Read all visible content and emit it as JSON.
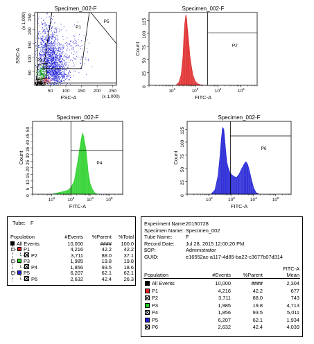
{
  "chart_data": [
    {
      "type": "scatter",
      "title": "Specimen_002-F",
      "xlabel": "FSC-A",
      "ylabel": "SSC-A",
      "x_unit": "(x 1,000)",
      "y_unit": "(x 1,000)",
      "xlim": [
        0,
        262
      ],
      "ylim": [
        0,
        262
      ],
      "x_ticks": [
        "50",
        "100",
        "150",
        "200",
        "250"
      ],
      "y_ticks": [
        "50",
        "100",
        "150",
        "200",
        "250"
      ],
      "gates": [
        "P1",
        "P3",
        "P5"
      ],
      "color": "#1b1bd6"
    },
    {
      "type": "area",
      "title": "Specimen_002-F",
      "xlabel": "FITC-A",
      "ylabel": "Count",
      "x_scale": "log",
      "xlim": [
        10,
        500000
      ],
      "ylim": [
        0,
        140
      ],
      "x_ticks": [
        "10^2",
        "10^3",
        "10^4",
        "10^5"
      ],
      "y_ticks": [
        "0",
        "25",
        "50",
        "75",
        "100",
        "125"
      ],
      "gate": "P2",
      "color": "#e03030",
      "x": [
        150,
        200,
        250,
        300,
        330,
        360,
        400,
        430,
        460,
        500,
        550,
        600,
        700,
        800,
        1000,
        1300,
        1700,
        2500
      ],
      "values": [
        0,
        6,
        20,
        55,
        95,
        120,
        135,
        128,
        112,
        95,
        75,
        55,
        35,
        20,
        8,
        3,
        1,
        0
      ]
    },
    {
      "type": "area",
      "title": "Specimen_002-F",
      "xlabel": "FITC-A",
      "ylabel": "Count",
      "x_scale": "log",
      "xlim": [
        10,
        500000
      ],
      "ylim": [
        0,
        55
      ],
      "x_ticks": [
        "10^2",
        "10^3",
        "10^4",
        "10^5"
      ],
      "y_ticks": [
        "0",
        "5",
        "10",
        "15",
        "20",
        "25",
        "30",
        "35",
        "40",
        "45",
        "50"
      ],
      "gate": "P4",
      "color": "#2ed22e",
      "x": [
        100,
        200,
        400,
        700,
        1000,
        1500,
        2000,
        2500,
        3000,
        3500,
        4000,
        4500,
        5000,
        6000,
        7000,
        8000,
        10000,
        13000,
        17000,
        25000
      ],
      "values": [
        0,
        1,
        2,
        3,
        5,
        10,
        20,
        28,
        36,
        42,
        46,
        44,
        40,
        34,
        25,
        16,
        8,
        4,
        1,
        0
      ]
    },
    {
      "type": "area",
      "title": "Specimen_002-F",
      "xlabel": "FITC-A",
      "ylabel": "Count",
      "x_scale": "log",
      "xlim": [
        10,
        500000
      ],
      "ylim": [
        0,
        140
      ],
      "x_ticks": [
        "10^2",
        "10^3",
        "10^4",
        "10^5"
      ],
      "y_ticks": [
        "0",
        "25",
        "50",
        "75",
        "100",
        "125"
      ],
      "gate": "P6",
      "color": "#2424d6",
      "x": [
        120,
        180,
        250,
        300,
        350,
        400,
        450,
        500,
        560,
        620,
        700,
        850,
        1000,
        1300,
        1700,
        2200,
        3000,
        3800,
        4500,
        5000,
        5600,
        6500,
        8000,
        10000,
        13000,
        18000
      ],
      "values": [
        0,
        8,
        35,
        70,
        105,
        128,
        125,
        105,
        80,
        62,
        52,
        42,
        38,
        34,
        32,
        38,
        50,
        58,
        62,
        60,
        55,
        45,
        28,
        12,
        3,
        0
      ]
    }
  ],
  "population_table": {
    "tube_label": "Tube:",
    "tube_value": "F",
    "headers": [
      "Population",
      "#Events",
      "%Parent",
      "%Total"
    ],
    "rows": [
      {
        "name": "All Events",
        "events": "10,000",
        "parent": "####",
        "total": "100.0"
      },
      {
        "name": "P1",
        "events": "4,216",
        "parent": "42.2",
        "total": "42.2"
      },
      {
        "name": "P2",
        "events": "3,711",
        "parent": "88.0",
        "total": "37.1"
      },
      {
        "name": "P3",
        "events": "1,985",
        "parent": "19.8",
        "total": "19.8"
      },
      {
        "name": "P4",
        "events": "1,856",
        "parent": "93.5",
        "total": "18.6"
      },
      {
        "name": "P5",
        "events": "6,207",
        "parent": "62.1",
        "total": "62.1"
      },
      {
        "name": "P6",
        "events": "2,632",
        "parent": "42.4",
        "total": "26.3"
      }
    ],
    "colors": {
      "all": "#000000",
      "P1": "#e02020",
      "P3": "#20d020",
      "P5": "#1b1bd6"
    }
  },
  "experiment": {
    "fields": [
      {
        "label": "Experiment Name:",
        "value": "20150728"
      },
      {
        "label": "Specimen Name:",
        "value": "Specimen_002"
      },
      {
        "label": "Tube Name:",
        "value": "F"
      },
      {
        "label": "Record Date:",
        "value": "Jul 28, 2015 12:00:20 PM"
      },
      {
        "label": "$OP:",
        "value": "Administrator"
      },
      {
        "label": "GUID:",
        "value": "e16552ac-a117-4d85-ba22-c3677b07d314"
      }
    ],
    "mean_header_line1": "FITC-A",
    "headers": [
      "Population",
      "#Events",
      "%Parent",
      "Mean"
    ],
    "rows": [
      {
        "name": "All Events",
        "events": "10,000",
        "parent": "####",
        "mean": "2,304"
      },
      {
        "name": "P1",
        "events": "4,216",
        "parent": "42.2",
        "mean": "677"
      },
      {
        "name": "P2",
        "events": "3,711",
        "parent": "88.0",
        "mean": "743"
      },
      {
        "name": "P3",
        "events": "1,985",
        "parent": "19.8",
        "mean": "4,713"
      },
      {
        "name": "P4",
        "events": "1,856",
        "parent": "93.5",
        "mean": "5,011"
      },
      {
        "name": "P5",
        "events": "6,207",
        "parent": "62.1",
        "mean": "1,934"
      },
      {
        "name": "P6",
        "events": "2,632",
        "parent": "42.4",
        "mean": "4,039"
      }
    ]
  }
}
